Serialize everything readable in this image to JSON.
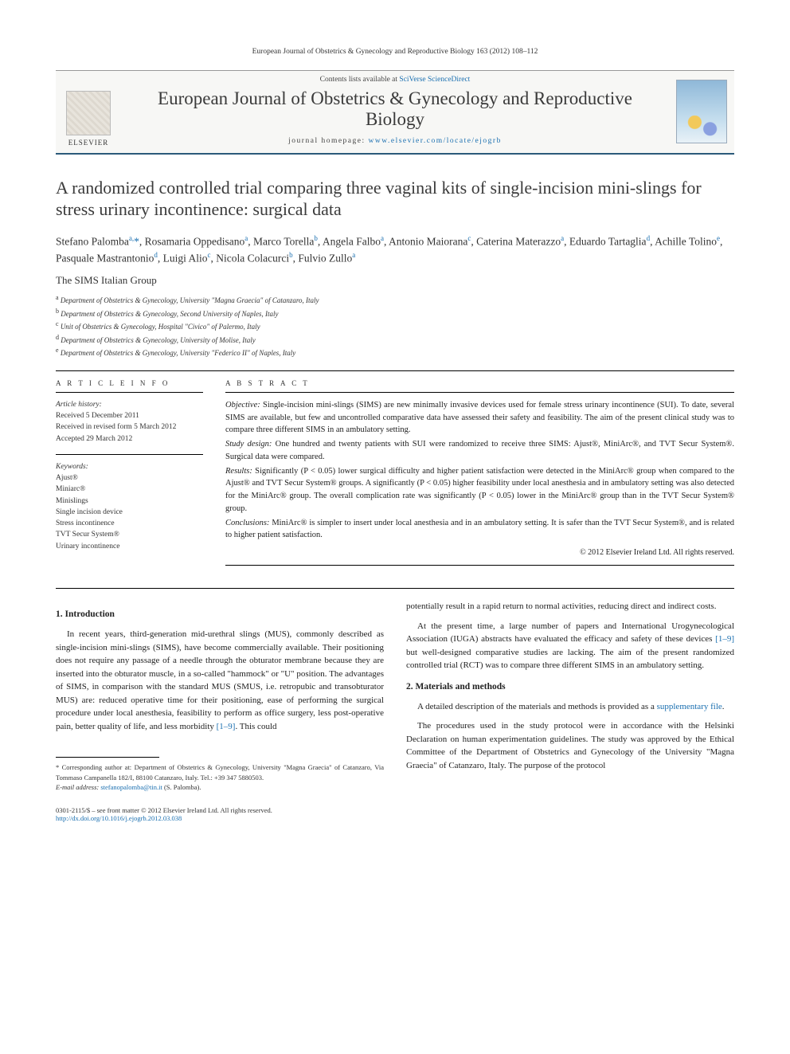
{
  "running_head": "European Journal of Obstetrics & Gynecology and Reproductive Biology 163 (2012) 108–112",
  "masthead": {
    "publisher": "ELSEVIER",
    "contents_prefix": "Contents lists available at ",
    "contents_link": "SciVerse ScienceDirect",
    "journal_name": "European Journal of Obstetrics & Gynecology and Reproductive Biology",
    "homepage_prefix": "journal homepage: ",
    "homepage_url": "www.elsevier.com/locate/ejogrb"
  },
  "title": "A randomized controlled trial comparing three vaginal kits of single-incision mini-slings for stress urinary incontinence: surgical data",
  "authors_html": "Stefano Palomba<sup>a,</sup><span class='star'>*</span>, Rosamaria Oppedisano<sup>a</sup>, Marco Torella<sup>b</sup>, Angela Falbo<sup>a</sup>, Antonio Maiorana<sup>c</sup>, Caterina Materazzo<sup>a</sup>, Eduardo Tartaglia<sup>d</sup>, Achille Tolino<sup>e</sup>, Pasquale Mastrantonio<sup>d</sup>, Luigi Alio<sup>c</sup>, Nicola Colacurci<sup>b</sup>, Fulvio Zullo<sup>a</sup>",
  "group": "The SIMS Italian Group",
  "affiliations": [
    {
      "key": "a",
      "text": "Department of Obstetrics & Gynecology, University \"Magna Graecia\" of Catanzaro, Italy"
    },
    {
      "key": "b",
      "text": "Department of Obstetrics & Gynecology, Second University of Naples, Italy"
    },
    {
      "key": "c",
      "text": "Unit of Obstetrics & Gynecology, Hospital \"Civico\" of Palermo, Italy"
    },
    {
      "key": "d",
      "text": "Department of Obstetrics & Gynecology, University of Molise, Italy"
    },
    {
      "key": "e",
      "text": "Department of Obstetrics & Gynecology, University \"Federico II\" of Naples, Italy"
    }
  ],
  "article_info": {
    "heading": "A R T I C L E   I N F O",
    "history_label": "Article history:",
    "history": [
      "Received 5 December 2011",
      "Received in revised form 5 March 2012",
      "Accepted 29 March 2012"
    ],
    "keywords_label": "Keywords:",
    "keywords": [
      "Ajust®",
      "Miniarc®",
      "Minislings",
      "Single incision device",
      "Stress incontinence",
      "TVT Secur System®",
      "Urinary incontinence"
    ]
  },
  "abstract": {
    "heading": "A B S T R A C T",
    "objective_label": "Objective:",
    "objective": "Single-incision mini-slings (SIMS) are new minimally invasive devices used for female stress urinary incontinence (SUI). To date, several SIMS are available, but few and uncontrolled comparative data have assessed their safety and feasibility. The aim of the present clinical study was to compare three different SIMS in an ambulatory setting.",
    "design_label": "Study design:",
    "design": "One hundred and twenty patients with SUI were randomized to receive three SIMS: Ajust®, MiniArc®, and TVT Secur System®. Surgical data were compared.",
    "results_label": "Results:",
    "results": "Significantly (P < 0.05) lower surgical difficulty and higher patient satisfaction were detected in the MiniArc® group when compared to the Ajust® and TVT Secur System® groups. A significantly (P < 0.05) higher feasibility under local anesthesia and in ambulatory setting was also detected for the MiniArc® group. The overall complication rate was significantly (P < 0.05) lower in the MiniArc® group than in the TVT Secur System® group.",
    "conclusions_label": "Conclusions:",
    "conclusions": "MiniArc® is simpler to insert under local anesthesia and in an ambulatory setting. It is safer than the TVT Secur System®, and is related to higher patient satisfaction.",
    "copyright": "© 2012 Elsevier Ireland Ltd. All rights reserved."
  },
  "body": {
    "s1_head": "1. Introduction",
    "s1_p1": "In recent years, third-generation mid-urethral slings (MUS), commonly described as single-incision mini-slings (SIMS), have become commercially available. Their positioning does not require any passage of a needle through the obturator membrane because they are inserted into the obturator muscle, in a so-called \"hammock\" or \"U\" position. The advantages of SIMS, in comparison with the standard MUS (SMUS, i.e. retropubic and transobturator MUS) are: reduced operative time for their positioning, ease of performing the surgical procedure under local anesthesia, feasibility to perform as office surgery, less post-operative pain, better quality of life, and less morbidity ",
    "s1_p1_ref": "[1–9]",
    "s1_p1_tail": ". This could",
    "s1_p2": "potentially result in a rapid return to normal activities, reducing direct and indirect costs.",
    "s1_p3a": "At the present time, a large number of papers and International Urogynecological Association (IUGA) abstracts have evaluated the efficacy and safety of these devices ",
    "s1_p3_ref": "[1–9]",
    "s1_p3b": " but well-designed comparative studies are lacking. The aim of the present randomized controlled trial (RCT) was to compare three different SIMS in an ambulatory setting.",
    "s2_head": "2. Materials and methods",
    "s2_p1a": "A detailed description of the materials and methods is provided as a ",
    "s2_p1_link": "supplementary file",
    "s2_p1b": ".",
    "s2_p2": "The procedures used in the study protocol were in accordance with the Helsinki Declaration on human experimentation guidelines. The study was approved by the Ethical Committee of the Department of Obstetrics and Gynecology of the University \"Magna Graecia\" of Catanzaro, Italy. The purpose of the protocol"
  },
  "footnote": {
    "corr_label": "* Corresponding author at:",
    "corr_text": " Department of Obstetrics & Gynecology, University \"Magna Graecia\" of Catanzaro, Via Tommaso Campanella 182/I, 88100 Catanzaro, Italy. Tel.: +39 347 5880503.",
    "email_label": "E-mail address:",
    "email": "stefanopalomba@tin.it",
    "email_who": " (S. Palomba)."
  },
  "bottom": {
    "issn": "0301-2115/$ – see front matter © 2012 Elsevier Ireland Ltd. All rights reserved.",
    "doi": "http://dx.doi.org/10.1016/j.ejogrb.2012.03.038"
  }
}
